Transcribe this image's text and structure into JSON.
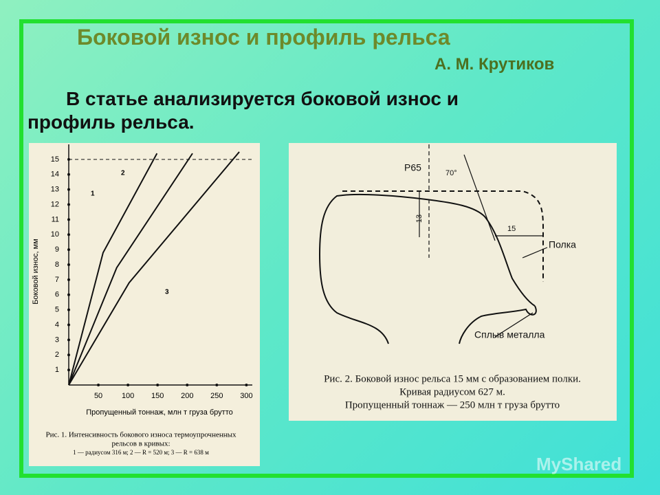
{
  "header": {
    "title": "Боковой износ и профиль рельса",
    "author": "А. М. Крутиков",
    "lead": "В статье анализируется боковой износ и",
    "lead2": "профиль рельса."
  },
  "chart_data": {
    "type": "line",
    "y_label": "Боковой износ, мм",
    "x_label": "Пропущенный тоннаж, млн т груза брутто",
    "caption": [
      "Рис. 1. Интенсивность бокового износа термоупрочненных",
      "рельсов в кривых:",
      "1 — радиусом 316 м; 2 — R = 520 м; 3 — R = 638 м"
    ],
    "xlim": [
      0,
      310
    ],
    "ylim": [
      0,
      16
    ],
    "xticks": [
      50,
      100,
      150,
      200,
      250,
      300
    ],
    "yticks": [
      1,
      2,
      3,
      4,
      5,
      6,
      7,
      8,
      9,
      10,
      11,
      12,
      13,
      14,
      15
    ],
    "reference_line": 15,
    "series": [
      {
        "name": "1",
        "color": "#111111",
        "x": [
          0,
          58,
          149
        ],
        "values": [
          0,
          8.8,
          15.4
        ]
      },
      {
        "name": "2",
        "color": "#111111",
        "x": [
          0,
          81,
          209
        ],
        "values": [
          0,
          7.8,
          15.4
        ]
      },
      {
        "name": "3",
        "color": "#111111",
        "x": [
          0,
          102,
          288
        ],
        "values": [
          0,
          6.8,
          15.5
        ]
      }
    ]
  },
  "fig2": {
    "rail": "Р65",
    "angle": "70°",
    "height": "13",
    "wear": "15",
    "shelf": "Полка",
    "flow": "Сплыв металла",
    "caption": [
      "Рис. 2. Боковой износ рельса 15 мм с образованием полки.",
      "Кривая радиусом 627 м.",
      "Пропущенный тоннаж — 250 млн т груза брутто"
    ]
  },
  "watermark": "MyShared"
}
